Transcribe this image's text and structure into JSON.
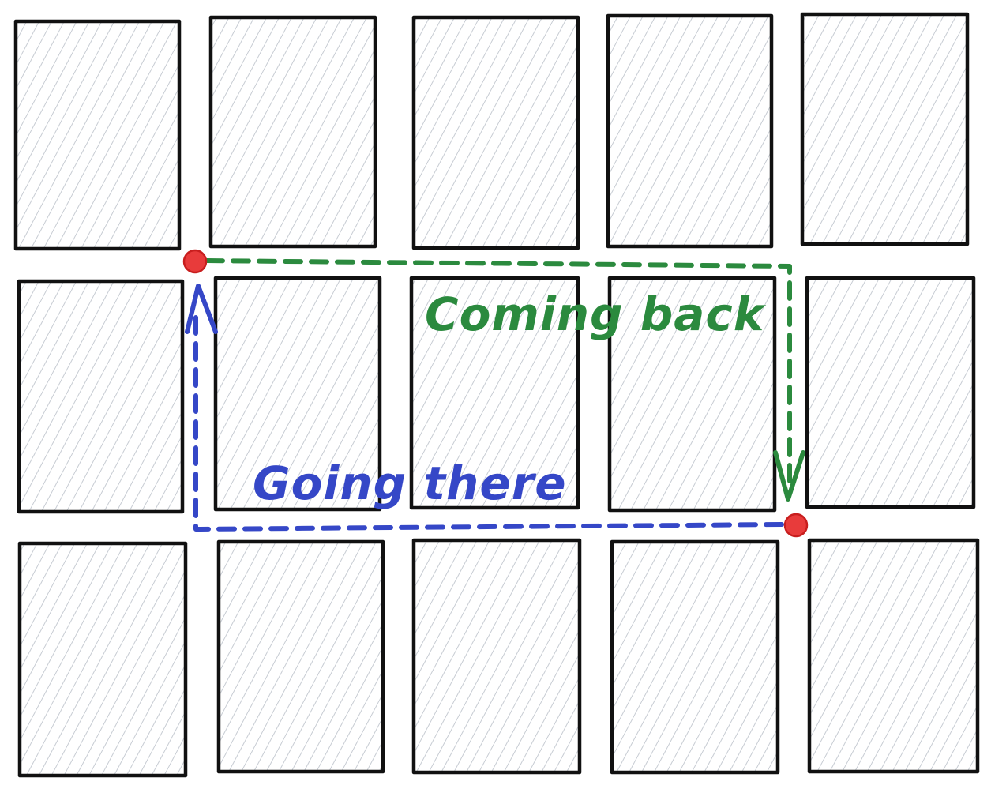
{
  "diagram": {
    "grid": {
      "rows": 3,
      "columns": 5
    },
    "colors": {
      "block_outline": "#111111",
      "block_hatch": "#c7ccd3",
      "endpoint_fill": "#e83b3b",
      "going_route": "#3547c7",
      "coming_route": "#2b8a3e"
    },
    "routes": {
      "going": {
        "label": "Going there",
        "color": "#3547c7"
      },
      "coming": {
        "label": "Coming back",
        "color": "#2b8a3e"
      }
    },
    "endpoints": [
      "start",
      "end"
    ]
  }
}
